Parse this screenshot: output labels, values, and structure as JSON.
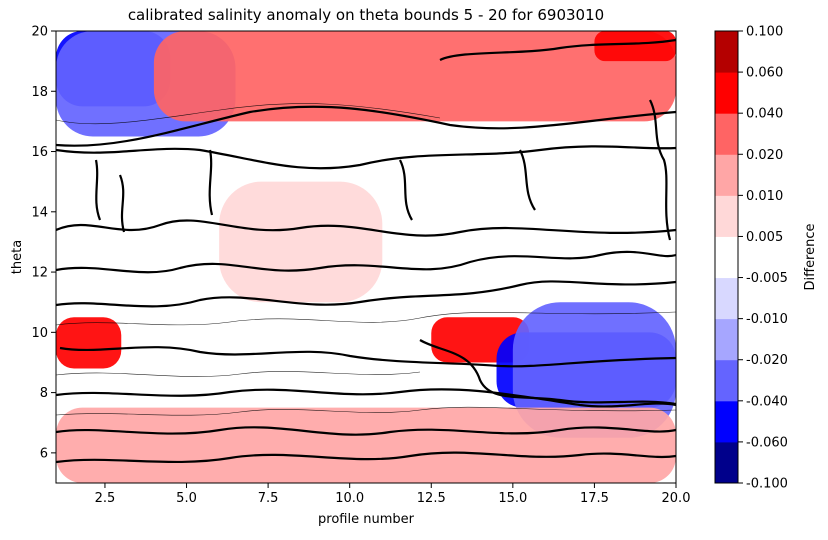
{
  "chart_data": {
    "type": "heatmap",
    "title": "calibrated salinity anomaly on theta bounds 5 - 20 for 6903010",
    "xlabel": "profile number",
    "ylabel": "theta",
    "xlim": [
      1,
      20
    ],
    "ylim": [
      5,
      20
    ],
    "xticks": [
      "2.5",
      "5.0",
      "7.5",
      "10.0",
      "12.5",
      "15.0",
      "17.5",
      "20.0"
    ],
    "xtick_values": [
      2.5,
      5.0,
      7.5,
      10.0,
      12.5,
      15.0,
      17.5,
      20.0
    ],
    "yticks": [
      "6",
      "8",
      "10",
      "12",
      "14",
      "16",
      "18",
      "20"
    ],
    "ytick_values": [
      6,
      8,
      10,
      12,
      14,
      16,
      18,
      20
    ],
    "grid": false,
    "colorbar": {
      "label": "Difference",
      "levels": [
        "-0.100",
        "-0.060",
        "-0.040",
        "-0.020",
        "-0.010",
        "-0.005",
        "0.005",
        "0.010",
        "0.020",
        "0.040",
        "0.060",
        "0.100"
      ],
      "colors": [
        "#00008b",
        "#0000ff",
        "#6464ff",
        "#a6a6ff",
        "#d8d8ff",
        "#ffffff",
        "#ffd8d8",
        "#ffa6a6",
        "#ff6464",
        "#ff0000",
        "#b40000"
      ]
    },
    "regions": [
      {
        "name": "upper-left strong negative",
        "x": [
          1,
          4.5
        ],
        "y": [
          17.5,
          20
        ],
        "value": -0.06
      },
      {
        "name": "upper-left negative",
        "x": [
          1,
          6.5
        ],
        "y": [
          16.5,
          20
        ],
        "value": -0.03
      },
      {
        "name": "upper positive band",
        "x": [
          4,
          20
        ],
        "y": [
          17,
          20
        ],
        "value": 0.025
      },
      {
        "name": "upper-right strong positive",
        "x": [
          17.5,
          20
        ],
        "y": [
          19,
          20
        ],
        "value": 0.05
      },
      {
        "name": "mid-left positive",
        "x": [
          1,
          3
        ],
        "y": [
          8.8,
          10.5
        ],
        "value": 0.04
      },
      {
        "name": "mid positive patch",
        "x": [
          12.5,
          15.5
        ],
        "y": [
          9,
          10.5
        ],
        "value": 0.04
      },
      {
        "name": "mid positive area",
        "x": [
          6,
          11
        ],
        "y": [
          11,
          15
        ],
        "value": 0.008
      },
      {
        "name": "lower-right strong negative",
        "x": [
          14.5,
          20
        ],
        "y": [
          7.5,
          10
        ],
        "value": -0.06
      },
      {
        "name": "lower-right negative",
        "x": [
          15,
          20
        ],
        "y": [
          6.5,
          11
        ],
        "value": -0.025
      },
      {
        "name": "bottom positive",
        "x": [
          1,
          20
        ],
        "y": [
          5,
          7.5
        ],
        "value": 0.01
      }
    ]
  }
}
